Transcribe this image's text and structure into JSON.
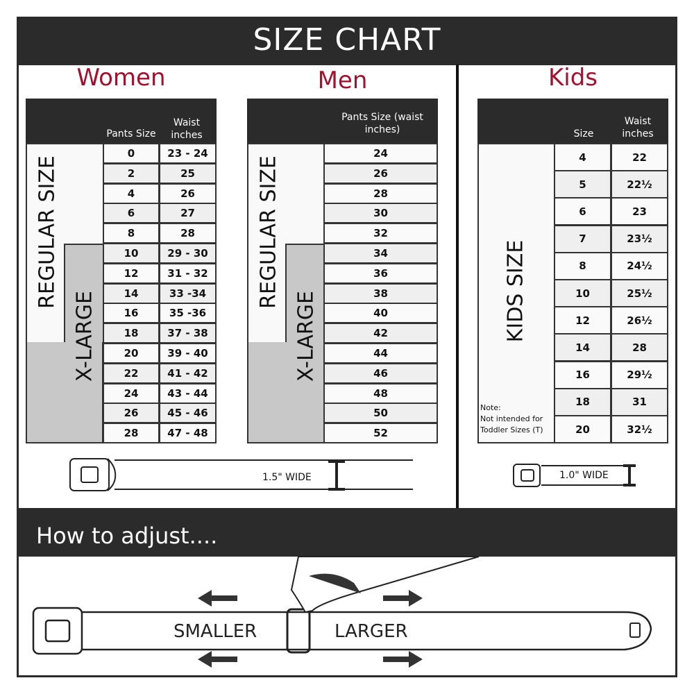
{
  "title": "SIZE CHART",
  "women": {
    "title": "Women",
    "col1": "Pants Size",
    "col2": "Waist inches",
    "regular_label": "REGULAR SIZE",
    "xlarge_label": "X-LARGE",
    "rows": [
      [
        "0",
        "23 - 24"
      ],
      [
        "2",
        "25"
      ],
      [
        "4",
        "26"
      ],
      [
        "6",
        "27"
      ],
      [
        "8",
        "28"
      ],
      [
        "10",
        "29 - 30"
      ],
      [
        "12",
        "31 - 32"
      ],
      [
        "14",
        "33 -34"
      ],
      [
        "16",
        "35 -36"
      ],
      [
        "18",
        "37 - 38"
      ],
      [
        "20",
        "39 - 40"
      ],
      [
        "22",
        "41 - 42"
      ],
      [
        "24",
        "43 - 44"
      ],
      [
        "26",
        "45 - 46"
      ],
      [
        "28",
        "47 - 48"
      ]
    ],
    "belt_width": "1.5\" WIDE"
  },
  "men": {
    "title": "Men",
    "col1": "Pants Size (waist inches)",
    "regular_label": "REGULAR SIZE",
    "xlarge_label": "X-LARGE",
    "rows": [
      "24",
      "26",
      "28",
      "30",
      "32",
      "34",
      "36",
      "38",
      "40",
      "42",
      "44",
      "46",
      "48",
      "50",
      "52"
    ]
  },
  "kids": {
    "title": "Kids",
    "col1": "Size",
    "col2": "Waist inches",
    "label": "KIDS SIZE",
    "note_title": "Note:",
    "note": "Not intended for Toddler Sizes (T)",
    "rows": [
      [
        "4",
        "22"
      ],
      [
        "5",
        "22½"
      ],
      [
        "6",
        "23"
      ],
      [
        "7",
        "23½"
      ],
      [
        "8",
        "24½"
      ],
      [
        "10",
        "25½"
      ],
      [
        "12",
        "26½"
      ],
      [
        "14",
        "28"
      ],
      [
        "16",
        "29½"
      ],
      [
        "18",
        "31"
      ],
      [
        "20",
        "32½"
      ]
    ],
    "belt_width": "1.0\" WIDE"
  },
  "adjust": {
    "title": "How to adjust....",
    "smaller": "SMALLER",
    "larger": "LARGER"
  },
  "colors": {
    "accent": "#a3112e",
    "dark": "#2b2b2b",
    "xlarge_gray": "#c8c8c8",
    "row_alt": "#efefef"
  }
}
